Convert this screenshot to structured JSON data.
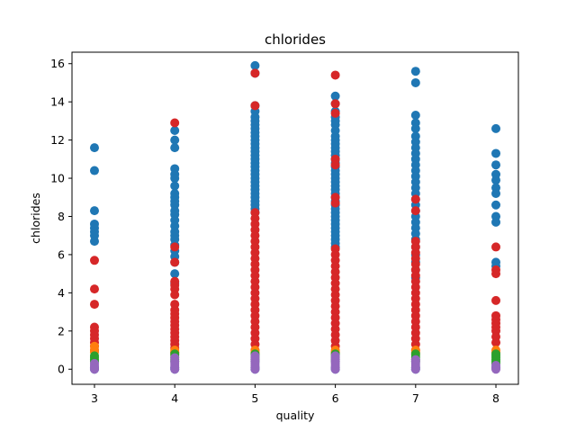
{
  "chart_data": {
    "type": "scatter",
    "title": "chlorides",
    "xlabel": "quality",
    "ylabel": "chlorides",
    "xlim": [
      2.72,
      8.28
    ],
    "ylim": [
      -0.79,
      16.6
    ],
    "xticks": [
      3,
      4,
      5,
      6,
      7,
      8
    ],
    "yticks": [
      0,
      2,
      4,
      6,
      8,
      10,
      12,
      14,
      16
    ],
    "grid": false,
    "legend": "none",
    "series": [
      {
        "color": "#1f77b4",
        "points": {
          "3": [
            11.6,
            10.4,
            8.3,
            7.6,
            7.4,
            7.2,
            7.0,
            6.7,
            0.1,
            0.0
          ],
          "4": [
            12.5,
            12.0,
            11.6,
            10.5,
            10.2,
            10.0,
            9.6,
            9.2,
            9.0,
            8.8,
            8.6,
            8.3,
            8.1,
            7.8,
            7.5,
            7.2,
            7.0,
            6.8,
            6.5,
            6.2,
            5.9,
            5.6,
            5.0,
            4.5,
            0.1,
            0.0
          ],
          "5": [
            15.9,
            15.5,
            13.8,
            13.5,
            13.2,
            13.0,
            12.8,
            12.6,
            12.4,
            12.2,
            12.0,
            11.8,
            11.6,
            11.4,
            11.2,
            11.0,
            10.8,
            10.6,
            10.4,
            10.2,
            10.0,
            9.8,
            9.6,
            9.4,
            9.2,
            9.0,
            8.8,
            8.6,
            8.4,
            8.2,
            0.1,
            0.0
          ],
          "6": [
            14.3,
            13.9,
            13.5,
            13.2,
            13.0,
            12.8,
            12.5,
            12.2,
            12.0,
            11.8,
            11.6,
            11.4,
            11.2,
            11.0,
            10.8,
            10.6,
            10.4,
            10.2,
            10.0,
            9.8,
            9.6,
            9.4,
            9.2,
            9.0,
            8.8,
            8.6,
            8.4,
            8.2,
            8.0,
            7.8,
            7.6,
            7.4,
            7.2,
            7.0,
            6.8,
            6.6,
            6.4,
            0.1,
            0.0
          ],
          "7": [
            15.6,
            15.0,
            13.3,
            12.9,
            12.6,
            12.2,
            11.9,
            11.6,
            11.3,
            11.0,
            10.7,
            10.4,
            10.1,
            9.8,
            9.5,
            9.2,
            8.9,
            8.6,
            8.3,
            8.0,
            7.7,
            7.4,
            7.1,
            6.8,
            6.4,
            6.0,
            5.6,
            5.2,
            4.8,
            0.1,
            0.0
          ],
          "8": [
            12.6,
            11.3,
            10.7,
            10.2,
            9.9,
            9.5,
            9.2,
            8.6,
            8.0,
            7.7,
            5.6,
            5.4,
            0.1
          ]
        }
      },
      {
        "color": "#d62728",
        "points": {
          "3": [
            5.7,
            4.2,
            3.4,
            2.2,
            2.0,
            1.8,
            1.6,
            1.4,
            1.2,
            1.0
          ],
          "4": [
            12.9,
            6.4,
            5.6,
            4.6,
            4.4,
            4.2,
            3.9,
            3.4,
            3.1,
            2.9,
            2.7,
            2.5,
            2.3,
            2.1,
            1.9,
            1.7,
            1.5,
            1.3,
            1.1,
            0.9
          ],
          "5": [
            15.5,
            13.8,
            8.2,
            7.9,
            7.6,
            7.3,
            7.0,
            6.7,
            6.4,
            6.1,
            5.8,
            5.5,
            5.2,
            4.9,
            4.6,
            4.3,
            4.0,
            3.7,
            3.4,
            3.1,
            2.8,
            2.5,
            2.2,
            1.9,
            1.6,
            1.3,
            1.0
          ],
          "6": [
            15.4,
            13.9,
            13.4,
            11.0,
            10.7,
            9.0,
            8.7,
            6.3,
            6.0,
            5.7,
            5.4,
            5.1,
            4.8,
            4.5,
            4.2,
            3.9,
            3.6,
            3.3,
            3.0,
            2.7,
            2.4,
            2.1,
            1.8,
            1.5,
            1.2,
            0.9
          ],
          "7": [
            8.9,
            8.3,
            6.7,
            6.4,
            6.1,
            5.8,
            5.5,
            5.2,
            4.9,
            4.6,
            4.3,
            4.0,
            3.7,
            3.4,
            3.1,
            2.8,
            2.5,
            2.2,
            1.9,
            1.6,
            1.3,
            1.0
          ],
          "8": [
            6.4,
            5.2,
            5.0,
            3.6,
            2.8,
            2.6,
            2.4,
            2.2,
            2.0,
            1.7,
            1.4
          ]
        }
      },
      {
        "color": "#ff7f0e",
        "points": {
          "3": [
            1.2,
            1.0,
            0.9
          ],
          "4": [
            1.0,
            0.9,
            0.8
          ],
          "5": [
            1.0,
            0.9,
            0.8
          ],
          "6": [
            1.0,
            0.9,
            0.8
          ],
          "7": [
            1.0,
            0.9,
            0.8
          ],
          "8": [
            1.0,
            0.9
          ]
        }
      },
      {
        "color": "#2ca02c",
        "points": {
          "3": [
            0.7,
            0.6,
            0.5,
            0.4
          ],
          "4": [
            0.8,
            0.7,
            0.6,
            0.5,
            0.4
          ],
          "5": [
            0.8,
            0.7,
            0.6,
            0.5,
            0.4
          ],
          "6": [
            0.8,
            0.7,
            0.6,
            0.5,
            0.4
          ],
          "7": [
            0.8,
            0.7,
            0.6,
            0.5,
            0.4
          ],
          "8": [
            0.8,
            0.7,
            0.6,
            0.5,
            0.4,
            0.3
          ]
        }
      },
      {
        "color": "#9467bd",
        "points": {
          "3": [
            0.3,
            0.2,
            0.1,
            0.05,
            0.0
          ],
          "4": [
            0.6,
            0.4,
            0.3,
            0.2,
            0.1,
            0.0
          ],
          "5": [
            0.7,
            0.6,
            0.5,
            0.4,
            0.3,
            0.2,
            0.1,
            0.0
          ],
          "6": [
            0.7,
            0.6,
            0.5,
            0.4,
            0.3,
            0.2,
            0.1,
            0.0
          ],
          "7": [
            0.5,
            0.4,
            0.3,
            0.2,
            0.1,
            0.0
          ],
          "8": [
            0.2,
            0.1,
            0.05,
            0.0
          ]
        }
      }
    ]
  }
}
